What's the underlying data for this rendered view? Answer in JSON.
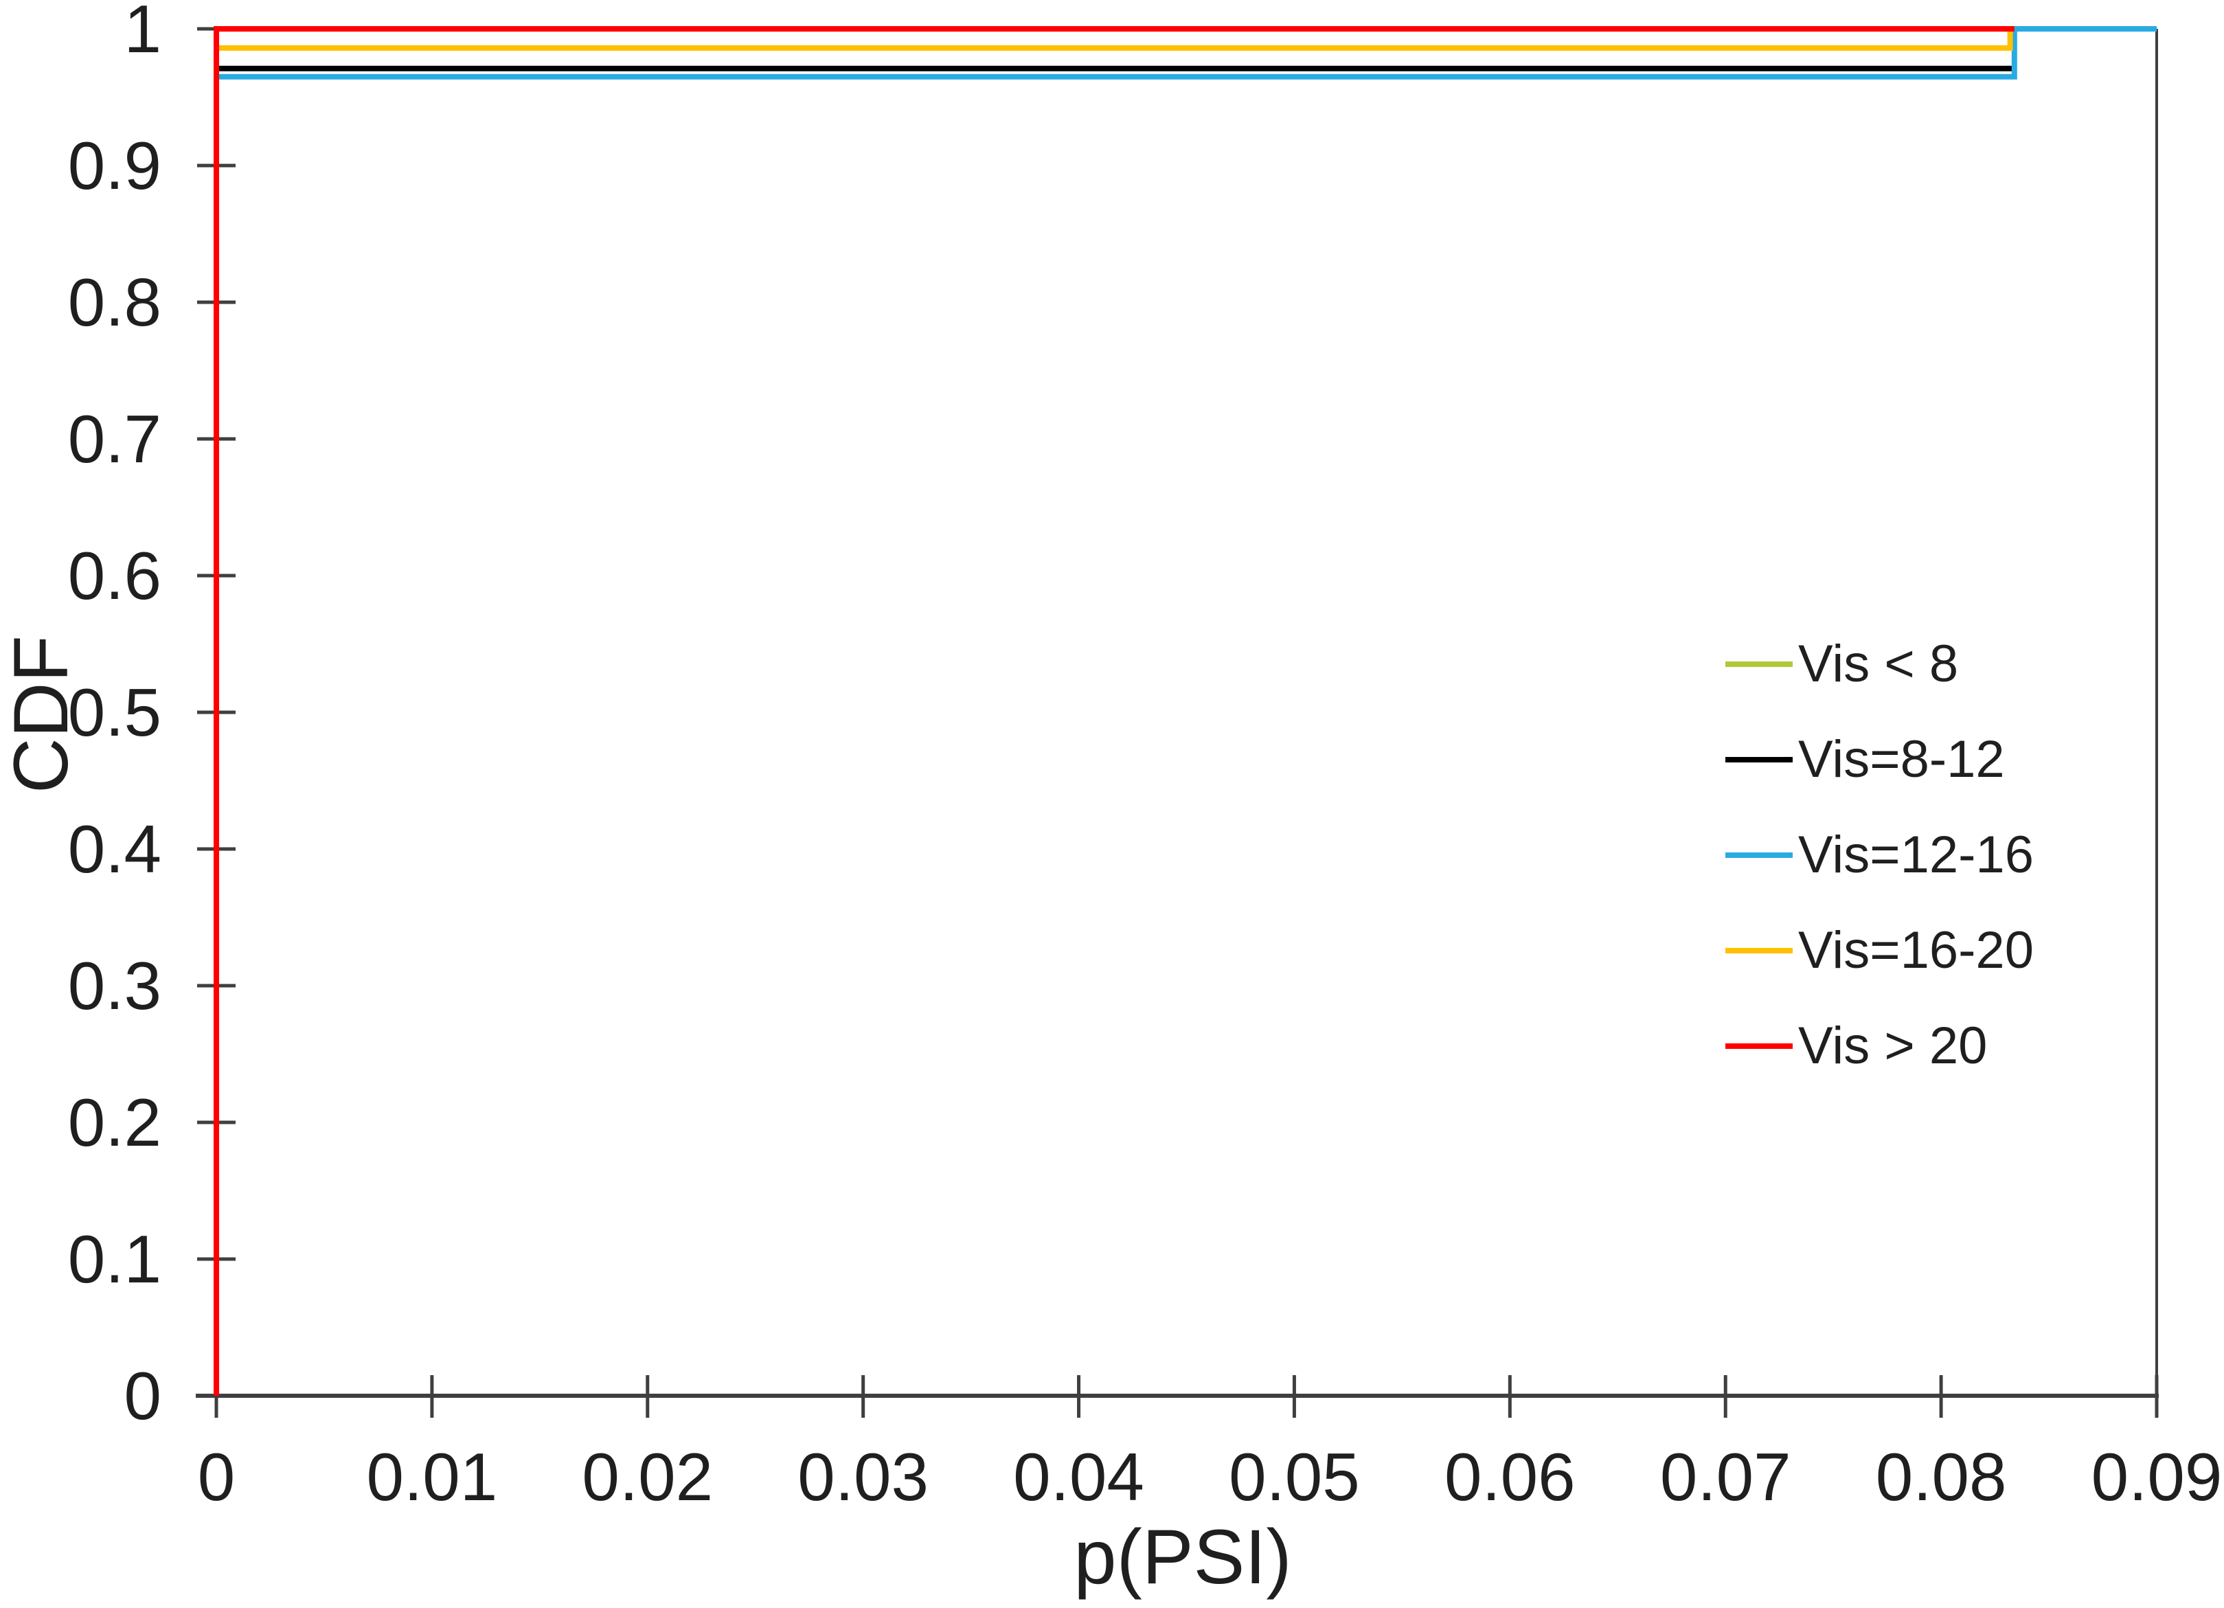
{
  "chart_data": {
    "type": "line",
    "subtype": "step-cdf",
    "title": "",
    "xlabel": "p(PSI)",
    "ylabel": "CDF",
    "xlim": [
      0,
      0.09
    ],
    "ylim": [
      0,
      1
    ],
    "x_tick_values": [
      0,
      0.01,
      0.02,
      0.03,
      0.04,
      0.05,
      0.06,
      0.07,
      0.08,
      0.09
    ],
    "x_tick_labels": [
      "0",
      "0.01",
      "0.02",
      "0.03",
      "0.04",
      "0.05",
      "0.06",
      "0.07",
      "0.08",
      "0.09"
    ],
    "y_tick_values": [
      1,
      0.9,
      0.8,
      0.7,
      0.6,
      0.5,
      0.4,
      0.3,
      0.2,
      0.1,
      0
    ],
    "y_tick_labels": [
      "1",
      "0.9",
      "0.8",
      "0.7",
      "0.6",
      "0.5",
      "0.4",
      "0.3",
      "0.2",
      "0.1",
      "0"
    ],
    "grid": false,
    "tick_style": "cross",
    "plot_border": "left-bottom-right",
    "axis_color": "#3f3f3f",
    "text_color": "#1f1f1f",
    "legend": {
      "position": "center-right",
      "entries": [
        "Vis < 8",
        "Vis=8-12",
        "Vis=12-16",
        "Vis=16-20",
        "Vis > 20"
      ]
    },
    "series": [
      {
        "name": "Vis < 8",
        "color": "#b2c936",
        "visible_in_plot": false,
        "points": [
          [
            0,
            0
          ],
          [
            0,
            1.0
          ],
          [
            0.0834,
            1.0
          ]
        ]
      },
      {
        "name": "Vis=8-12",
        "color": "#000000",
        "visible_in_plot": true,
        "points": [
          [
            0,
            0
          ],
          [
            0,
            0.971
          ],
          [
            0.0833,
            0.971
          ]
        ]
      },
      {
        "name": "Vis=12-16",
        "color": "#29abe2",
        "visible_in_plot": true,
        "points": [
          [
            0,
            0
          ],
          [
            0,
            0.965
          ],
          [
            0.0834,
            0.965
          ],
          [
            0.0834,
            1.0
          ],
          [
            0.09,
            1.0
          ]
        ]
      },
      {
        "name": "Vis=16-20",
        "color": "#ffc000",
        "visible_in_plot": true,
        "points": [
          [
            0,
            0
          ],
          [
            0,
            0.986
          ],
          [
            0.0832,
            0.986
          ],
          [
            0.0832,
            1.0
          ]
        ]
      },
      {
        "name": "Vis > 20",
        "color": "#fe0000",
        "visible_in_plot": true,
        "points": [
          [
            0,
            0
          ],
          [
            0,
            1.0
          ],
          [
            0.0834,
            1.0
          ]
        ]
      }
    ]
  }
}
